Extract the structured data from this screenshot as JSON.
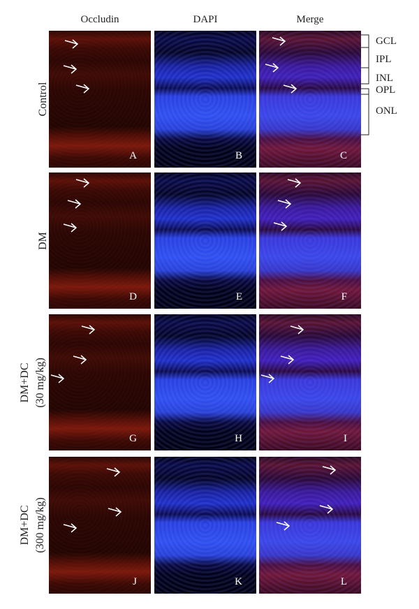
{
  "column_headers": [
    "Occludin",
    "DAPI",
    "Merge"
  ],
  "rows": [
    {
      "label": [
        "Control"
      ],
      "panels": [
        "A",
        "B",
        "C"
      ]
    },
    {
      "label": [
        "DM"
      ],
      "panels": [
        "D",
        "E",
        "F"
      ]
    },
    {
      "label": [
        "DM+DC",
        "(30 mg/kg)"
      ],
      "panels": [
        "G",
        "H",
        "I"
      ]
    },
    {
      "label": [
        "DM+DC",
        "(300 mg/kg)"
      ],
      "panels": [
        "J",
        "K",
        "L"
      ]
    }
  ],
  "layer_labels": [
    "GCL",
    "IPL",
    "INL",
    "OPL",
    "ONL"
  ]
}
